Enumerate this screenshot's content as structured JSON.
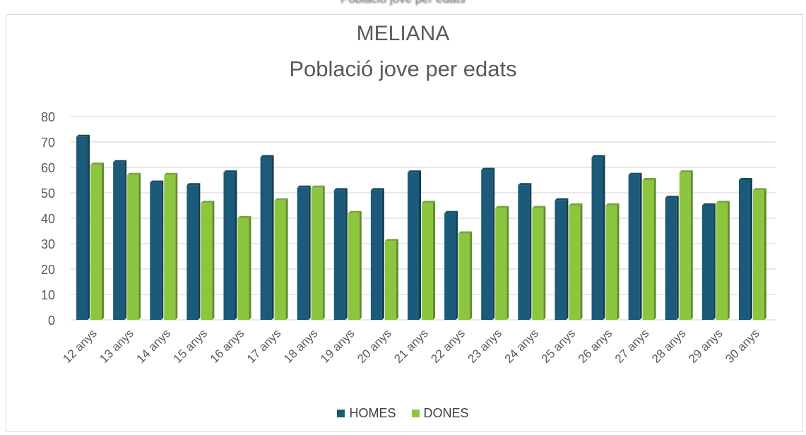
{
  "header_caption": "Població jove per edats",
  "chart_data": {
    "type": "bar",
    "title": "MELIANA",
    "subtitle": "Població jove per edats",
    "categories": [
      "12 anys",
      "13 anys",
      "14 anys",
      "15 anys",
      "16 anys",
      "17 anys",
      "18 anys",
      "19 anys",
      "20 anys",
      "21 anys",
      "22 anys",
      "23 anys",
      "24 anys",
      "25 anys",
      "26 anys",
      "27 anys",
      "28 anys",
      "29 anys",
      "30 anys"
    ],
    "series": [
      {
        "name": "HOMES",
        "color": "#1b5a78",
        "values": [
          72,
          62,
          54,
          53,
          58,
          64,
          52,
          51,
          51,
          58,
          42,
          59,
          53,
          47,
          64,
          57,
          48,
          45,
          55
        ]
      },
      {
        "name": "DONES",
        "color": "#8cc63f",
        "values": [
          61,
          57,
          57,
          46,
          40,
          47,
          52,
          42,
          31,
          46,
          34,
          44,
          44,
          45,
          45,
          55,
          58,
          46,
          51
        ]
      }
    ],
    "ylim": [
      0,
      80
    ],
    "yticks": [
      0,
      10,
      20,
      30,
      40,
      50,
      60,
      70,
      80
    ],
    "grid": true,
    "legend_position": "bottom"
  }
}
